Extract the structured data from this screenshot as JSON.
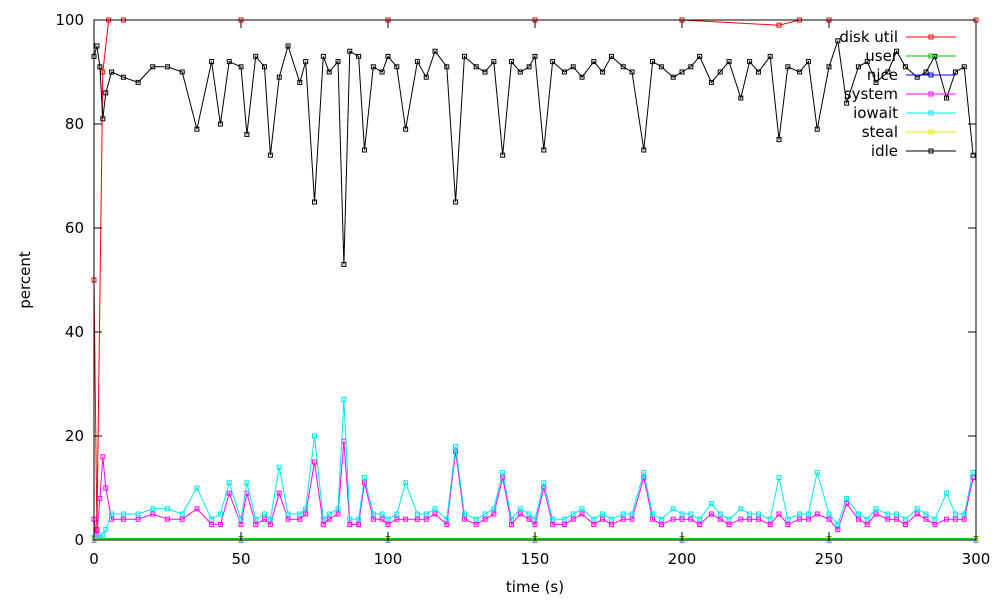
{
  "chart_data": {
    "type": "line",
    "title": "",
    "xlabel": "time (s)",
    "ylabel": "percent",
    "xlim": [
      0,
      300
    ],
    "ylim": [
      0,
      100
    ],
    "xticks": [
      "0",
      "50",
      "100",
      "150",
      "200",
      "250",
      "300"
    ],
    "yticks": [
      "0",
      "20",
      "40",
      "60",
      "80",
      "100"
    ],
    "grid": false,
    "legend_position": "top-right",
    "colors": {
      "disk_util": "#ff0000",
      "user": "#00c000",
      "nice": "#0000ff",
      "system": "#ff00ff",
      "iowait": "#00e8e8",
      "steal": "#e8e800",
      "idle": "#000000"
    },
    "series": [
      {
        "name": "disk util",
        "x": [
          0,
          1,
          3,
          5,
          10,
          50,
          100,
          150,
          200,
          233,
          240,
          250,
          300
        ],
        "y": [
          50,
          2,
          90,
          100,
          100,
          100,
          100,
          100,
          100,
          99,
          100,
          100,
          100
        ]
      },
      {
        "name": "user",
        "x": [
          0,
          50,
          100,
          150,
          200,
          250,
          300
        ],
        "y": [
          0.3,
          0.3,
          0.3,
          0.3,
          0.3,
          0.3,
          0.3
        ]
      },
      {
        "name": "nice",
        "x": [
          0,
          50,
          100,
          150,
          200,
          250,
          300
        ],
        "y": [
          0,
          0,
          0,
          0,
          0,
          0,
          0
        ]
      },
      {
        "name": "system",
        "x": [
          0,
          1,
          2,
          3,
          4,
          6,
          10,
          15,
          20,
          25,
          30,
          35,
          40,
          43,
          46,
          50,
          52,
          55,
          58,
          60,
          63,
          66,
          70,
          72,
          75,
          78,
          80,
          83,
          85,
          87,
          90,
          92,
          95,
          98,
          100,
          103,
          106,
          110,
          113,
          116,
          120,
          123,
          126,
          130,
          133,
          136,
          139,
          142,
          145,
          148,
          150,
          153,
          156,
          160,
          163,
          166,
          170,
          173,
          176,
          180,
          183,
          187,
          190,
          193,
          197,
          200,
          203,
          206,
          210,
          213,
          216,
          220,
          223,
          226,
          230,
          233,
          236,
          240,
          243,
          246,
          250,
          253,
          256,
          260,
          263,
          266,
          270,
          273,
          276,
          280,
          283,
          286,
          290,
          293,
          296,
          299
        ],
        "y": [
          4,
          1,
          8,
          16,
          10,
          4,
          4,
          4,
          5,
          4,
          4,
          6,
          3,
          3,
          9,
          3,
          9,
          3,
          4,
          3,
          9,
          4,
          4,
          5,
          15,
          3,
          4,
          5,
          19,
          3,
          3,
          11,
          4,
          4,
          3,
          4,
          4,
          4,
          4,
          5,
          3,
          17,
          4,
          3,
          4,
          5,
          12,
          3,
          5,
          4,
          3,
          10,
          3,
          3,
          4,
          5,
          3,
          4,
          3,
          4,
          4,
          12,
          4,
          3,
          4,
          4,
          4,
          3,
          5,
          4,
          3,
          4,
          4,
          4,
          3,
          5,
          3,
          4,
          4,
          5,
          4,
          2,
          7,
          4,
          3,
          5,
          4,
          4,
          3,
          5,
          4,
          3,
          4,
          4,
          4,
          12
        ]
      },
      {
        "name": "iowait",
        "x": [
          0,
          1,
          2,
          3,
          4,
          6,
          10,
          15,
          20,
          25,
          30,
          35,
          40,
          43,
          46,
          50,
          52,
          55,
          58,
          60,
          63,
          66,
          70,
          72,
          75,
          78,
          80,
          83,
          85,
          87,
          90,
          92,
          95,
          98,
          100,
          103,
          106,
          110,
          113,
          116,
          120,
          123,
          126,
          130,
          133,
          136,
          139,
          142,
          145,
          148,
          150,
          153,
          156,
          160,
          163,
          166,
          170,
          173,
          176,
          180,
          183,
          187,
          190,
          193,
          197,
          200,
          203,
          206,
          210,
          213,
          216,
          220,
          223,
          226,
          230,
          233,
          236,
          240,
          243,
          246,
          250,
          253,
          256,
          260,
          263,
          266,
          270,
          273,
          276,
          280,
          283,
          286,
          290,
          293,
          296,
          299
        ],
        "y": [
          0.5,
          0.5,
          0.5,
          1,
          2,
          5,
          5,
          5,
          6,
          6,
          5,
          10,
          4,
          5,
          11,
          4,
          11,
          4,
          5,
          4,
          14,
          5,
          5,
          6,
          20,
          4,
          5,
          6,
          27,
          4,
          4,
          12,
          5,
          5,
          4,
          5,
          11,
          5,
          5,
          6,
          4,
          18,
          5,
          4,
          5,
          6,
          13,
          4,
          6,
          5,
          4,
          11,
          4,
          4,
          5,
          6,
          4,
          5,
          4,
          5,
          5,
          13,
          5,
          4,
          6,
          5,
          5,
          4,
          7,
          5,
          4,
          6,
          5,
          5,
          4,
          12,
          4,
          5,
          5,
          13,
          5,
          3,
          8,
          5,
          4,
          6,
          5,
          5,
          4,
          6,
          5,
          4,
          9,
          5,
          5,
          13
        ]
      },
      {
        "name": "steal",
        "x": [
          0,
          50,
          100,
          150,
          200,
          250,
          300
        ],
        "y": [
          0.1,
          0.1,
          0.1,
          0.1,
          0.1,
          0.1,
          0.1
        ]
      },
      {
        "name": "idle",
        "x": [
          0,
          1,
          2,
          3,
          4,
          6,
          10,
          15,
          20,
          25,
          30,
          35,
          40,
          43,
          46,
          50,
          52,
          55,
          58,
          60,
          63,
          66,
          70,
          72,
          75,
          78,
          80,
          83,
          85,
          87,
          90,
          92,
          95,
          98,
          100,
          103,
          106,
          110,
          113,
          116,
          120,
          123,
          126,
          130,
          133,
          136,
          139,
          142,
          145,
          148,
          150,
          153,
          156,
          160,
          163,
          166,
          170,
          173,
          176,
          180,
          183,
          187,
          190,
          193,
          197,
          200,
          203,
          206,
          210,
          213,
          216,
          220,
          223,
          226,
          230,
          233,
          236,
          240,
          243,
          246,
          250,
          253,
          256,
          260,
          263,
          266,
          270,
          273,
          276,
          280,
          283,
          286,
          290,
          293,
          296,
          299
        ],
        "y": [
          93,
          95,
          91,
          81,
          86,
          90,
          89,
          88,
          91,
          91,
          90,
          79,
          92,
          80,
          92,
          91,
          78,
          93,
          91,
          74,
          89,
          95,
          88,
          92,
          65,
          93,
          90,
          92,
          53,
          94,
          93,
          75,
          91,
          90,
          93,
          91,
          79,
          92,
          89,
          94,
          91,
          65,
          93,
          91,
          90,
          92,
          74,
          92,
          90,
          91,
          93,
          75,
          92,
          90,
          91,
          89,
          92,
          90,
          93,
          91,
          90,
          75,
          92,
          91,
          89,
          90,
          91,
          93,
          88,
          90,
          92,
          85,
          92,
          90,
          93,
          77,
          91,
          90,
          92,
          79,
          91,
          96,
          84,
          91,
          92,
          88,
          90,
          94,
          91,
          89,
          90,
          93,
          85,
          90,
          91,
          74
        ]
      }
    ]
  }
}
